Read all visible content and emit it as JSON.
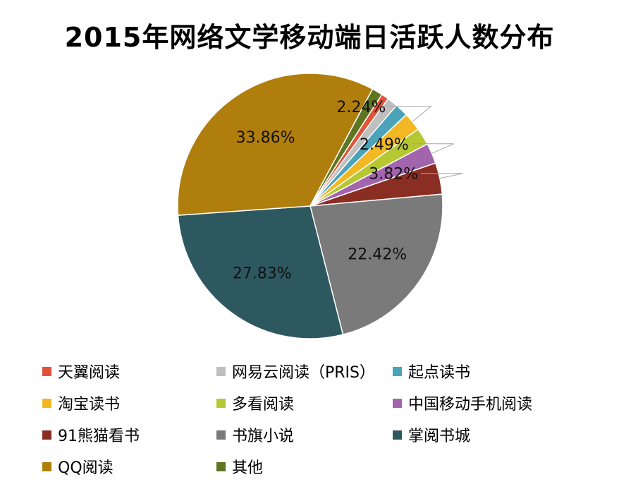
{
  "chart_data": {
    "type": "pie",
    "title": "2015年网络文学移动端日活跃人数分布",
    "legend_position": "bottom",
    "slices": [
      {
        "name": "天翼阅读",
        "value": 0.9,
        "color": "#e0533a",
        "label": ""
      },
      {
        "name": "网易云阅读（PRIS）",
        "value": 1.3,
        "color": "#bfbfbf",
        "label": ""
      },
      {
        "name": "起点读书",
        "value": 1.6,
        "color": "#4aa3b8",
        "label": ""
      },
      {
        "name": "淘宝读书",
        "value": 2.24,
        "color": "#f2b824",
        "label": "2.24%"
      },
      {
        "name": "多看阅读",
        "value": 2.1,
        "color": "#b5c832",
        "label": ""
      },
      {
        "name": "中国移动手机阅读",
        "value": 2.49,
        "color": "#a264ad",
        "label": "2.49%"
      },
      {
        "name": "91熊猫看书",
        "value": 3.82,
        "color": "#8a2d22",
        "label": "3.82%"
      },
      {
        "name": "书旗小说",
        "value": 22.42,
        "color": "#7a7a7a",
        "label": "22.42%"
      },
      {
        "name": "掌阅书城",
        "value": 27.83,
        "color": "#2e5860",
        "label": "27.83%"
      },
      {
        "name": "QQ阅读",
        "value": 33.86,
        "color": "#b07e0c",
        "label": "33.86%"
      },
      {
        "name": "其他",
        "value": 1.3,
        "color": "#5e7522",
        "label": ""
      }
    ]
  }
}
